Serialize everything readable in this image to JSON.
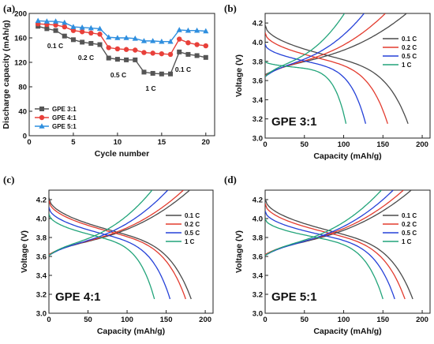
{
  "chart_data": [
    {
      "panel_label": "(a)",
      "type": "line",
      "xlabel": "Cycle number",
      "ylabel": "Discharge capacity (mAh/g)",
      "xlim": [
        0,
        21
      ],
      "ylim": [
        0,
        200
      ],
      "xticks": [
        0,
        5,
        10,
        15,
        20
      ],
      "yticks": [
        0,
        40,
        80,
        120,
        160,
        200
      ],
      "legend_position": "bottom-left",
      "rate_annotations": [
        "0.1 C",
        "0.2 C",
        "0.5 C",
        "1 C",
        "0.1 C"
      ],
      "x": [
        1,
        2,
        3,
        4,
        5,
        6,
        7,
        8,
        9,
        10,
        11,
        12,
        13,
        14,
        15,
        16,
        17,
        18,
        19,
        20
      ],
      "series": [
        {
          "name": "GPE 3:1",
          "color": "#555555",
          "marker": "square",
          "values": [
            179,
            175,
            172,
            163,
            157,
            153,
            151,
            149,
            127,
            125,
            124,
            124,
            104,
            102,
            101,
            101,
            137,
            133,
            131,
            128
          ]
        },
        {
          "name": "GPE 4:1",
          "color": "#e8403a",
          "marker": "circle",
          "values": [
            183,
            182,
            181,
            178,
            172,
            170,
            168,
            166,
            144,
            142,
            141,
            140,
            136,
            135,
            134,
            133,
            158,
            152,
            149,
            147
          ]
        },
        {
          "name": "GPE 5:1",
          "color": "#2f8fdf",
          "marker": "triangle",
          "values": [
            188,
            187,
            187,
            185,
            178,
            177,
            176,
            175,
            161,
            160,
            160,
            159,
            155,
            155,
            154,
            154,
            173,
            172,
            172,
            171
          ]
        }
      ]
    },
    {
      "panel_label": "(b)",
      "type": "line",
      "xlabel": "Capacity (mAh/g)",
      "ylabel": "Voltage (V)",
      "annotation": "GPE 3:1",
      "xlim": [
        0,
        210
      ],
      "ylim": [
        3.0,
        4.3
      ],
      "xticks": [
        0,
        50,
        100,
        150,
        200
      ],
      "yticks": [
        3.0,
        3.2,
        3.4,
        3.6,
        3.8,
        4.0,
        4.2
      ],
      "legend_position": "top-right",
      "series": [
        {
          "name": "0.1 C",
          "color": "#4a4a4a",
          "discharge_capacity": 182,
          "charge_capacity": 180,
          "discharge_start_v": 4.18,
          "charge_start_v": 3.66
        },
        {
          "name": "0.2 C",
          "color": "#e33b2e",
          "discharge_capacity": 156,
          "charge_capacity": 153,
          "discharge_start_v": 4.1,
          "charge_start_v": 3.65
        },
        {
          "name": "0.5 C",
          "color": "#2541d8",
          "discharge_capacity": 128,
          "charge_capacity": 126,
          "discharge_start_v": 3.98,
          "charge_start_v": 3.64
        },
        {
          "name": "1 C",
          "color": "#22a47a",
          "discharge_capacity": 103,
          "charge_capacity": 101,
          "discharge_start_v": 3.8,
          "charge_start_v": 3.64
        }
      ]
    },
    {
      "panel_label": "(c)",
      "type": "line",
      "xlabel": "Capacity (mAh/g)",
      "ylabel": "Voltage (V)",
      "annotation": "GPE 4:1",
      "xlim": [
        0,
        210
      ],
      "ylim": [
        3.0,
        4.3
      ],
      "xticks": [
        0,
        50,
        100,
        150,
        200
      ],
      "yticks": [
        3.0,
        3.2,
        3.4,
        3.6,
        3.8,
        4.0,
        4.2
      ],
      "legend_position": "top-right",
      "series": [
        {
          "name": "0.1 C",
          "color": "#4a4a4a",
          "discharge_capacity": 182,
          "charge_capacity": 180,
          "discharge_start_v": 4.22,
          "charge_start_v": 3.62
        },
        {
          "name": "0.2 C",
          "color": "#e33b2e",
          "discharge_capacity": 175,
          "charge_capacity": 172,
          "discharge_start_v": 4.19,
          "charge_start_v": 3.62
        },
        {
          "name": "0.5 C",
          "color": "#2541d8",
          "discharge_capacity": 155,
          "charge_capacity": 152,
          "discharge_start_v": 4.12,
          "charge_start_v": 3.61
        },
        {
          "name": "1 C",
          "color": "#22a47a",
          "discharge_capacity": 135,
          "charge_capacity": 132,
          "discharge_start_v": 4.05,
          "charge_start_v": 3.61
        }
      ]
    },
    {
      "panel_label": "(d)",
      "type": "line",
      "xlabel": "Capacity (mAh/g)",
      "ylabel": "Voltage (V)",
      "annotation": "GPE 5:1",
      "xlim": [
        0,
        210
      ],
      "ylim": [
        3.0,
        4.3
      ],
      "xticks": [
        0,
        50,
        100,
        150,
        200
      ],
      "yticks": [
        3.0,
        3.2,
        3.4,
        3.6,
        3.8,
        4.0,
        4.2
      ],
      "legend_position": "top-right",
      "series": [
        {
          "name": "0.1 C",
          "color": "#4a4a4a",
          "discharge_capacity": 188,
          "charge_capacity": 186,
          "discharge_start_v": 4.21,
          "charge_start_v": 3.62
        },
        {
          "name": "0.2 C",
          "color": "#e33b2e",
          "discharge_capacity": 178,
          "charge_capacity": 176,
          "discharge_start_v": 4.16,
          "charge_start_v": 3.62
        },
        {
          "name": "0.5 C",
          "color": "#2541d8",
          "discharge_capacity": 165,
          "charge_capacity": 163,
          "discharge_start_v": 4.08,
          "charge_start_v": 3.61
        },
        {
          "name": "1 C",
          "color": "#22a47a",
          "discharge_capacity": 150,
          "charge_capacity": 148,
          "discharge_start_v": 4.0,
          "charge_start_v": 3.61
        }
      ]
    }
  ]
}
